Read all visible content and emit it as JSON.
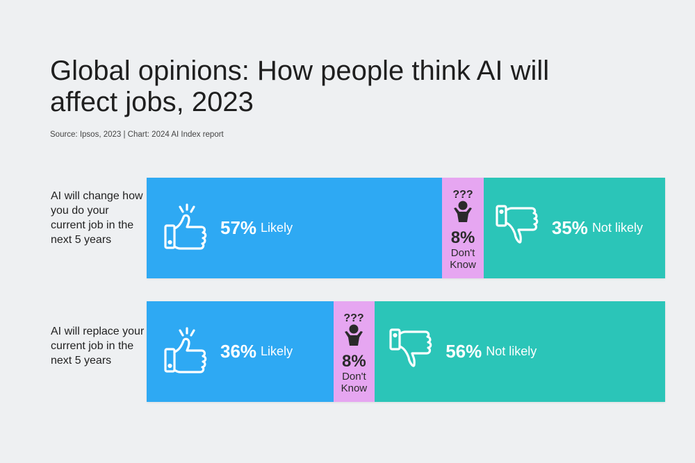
{
  "title": "Global opinions: How people think AI will affect jobs, 2023",
  "source": "Source: Ipsos, 2023 | Chart: 2024 AI Index report",
  "colors": {
    "likely": "#2ea9f3",
    "dont_know": "#e6a6f1",
    "not_likely": "#2bc5b8",
    "background": "#eef0f2"
  },
  "icons": {
    "likely": "thumbs-up-icon",
    "dont_know": "confused-person-icon",
    "not_likely": "thumbs-down-icon"
  },
  "rows": [
    {
      "question": "AI will change how you do your current job in the next 5 years",
      "likely_pct": "57%",
      "likely_label": "Likely",
      "dk_pct": "8%",
      "dk_label": "Don't Know",
      "not_pct": "35%",
      "not_label": "Not likely"
    },
    {
      "question": "AI will replace your current job in the next 5 years",
      "likely_pct": "36%",
      "likely_label": "Likely",
      "dk_pct": "8%",
      "dk_label": "Don't Know",
      "not_pct": "56%",
      "not_label": "Not likely"
    }
  ],
  "chart_data": {
    "type": "bar",
    "orientation": "horizontal-stacked",
    "title": "Global opinions: How people think AI will affect jobs, 2023",
    "categories": [
      "AI will change how you do your current job in the next 5 years",
      "AI will replace your current job in the next 5 years"
    ],
    "series": [
      {
        "name": "Likely",
        "values": [
          57,
          36
        ]
      },
      {
        "name": "Don't Know",
        "values": [
          8,
          8
        ]
      },
      {
        "name": "Not likely",
        "values": [
          35,
          56
        ]
      }
    ],
    "unit": "%"
  }
}
